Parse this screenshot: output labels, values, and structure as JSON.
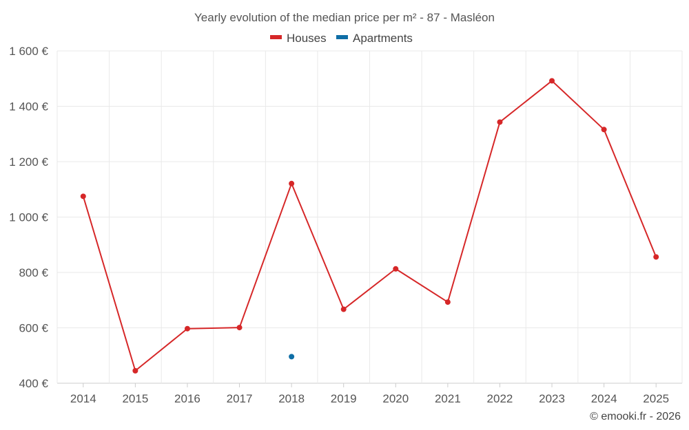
{
  "chart_data": {
    "type": "line",
    "title": "Yearly evolution of the median price per m² - 87 - Masléon",
    "categories": [
      "2014",
      "2015",
      "2016",
      "2017",
      "2018",
      "2019",
      "2020",
      "2021",
      "2022",
      "2023",
      "2024",
      "2025"
    ],
    "series": [
      {
        "name": "Houses",
        "color": "#d62728",
        "values": [
          1075,
          445,
          597,
          601,
          1121,
          667,
          813,
          693,
          1343,
          1492,
          1316,
          856
        ]
      },
      {
        "name": "Apartments",
        "color": "#0f6ea6",
        "values": [
          null,
          null,
          null,
          null,
          496,
          null,
          null,
          null,
          null,
          null,
          null,
          null
        ]
      }
    ],
    "y_ticks": [
      400,
      600,
      800,
      1000,
      1200,
      1400,
      1600
    ],
    "y_tick_labels": [
      "400 €",
      "600 €",
      "800 €",
      "1 000 €",
      "1 200 €",
      "1 400 €",
      "1 600 €"
    ],
    "ylim": [
      400,
      1600
    ],
    "xlabel": "",
    "ylabel": "",
    "legend_position": "top-center",
    "grid": true
  },
  "credit": "© emooki.fr - 2026"
}
